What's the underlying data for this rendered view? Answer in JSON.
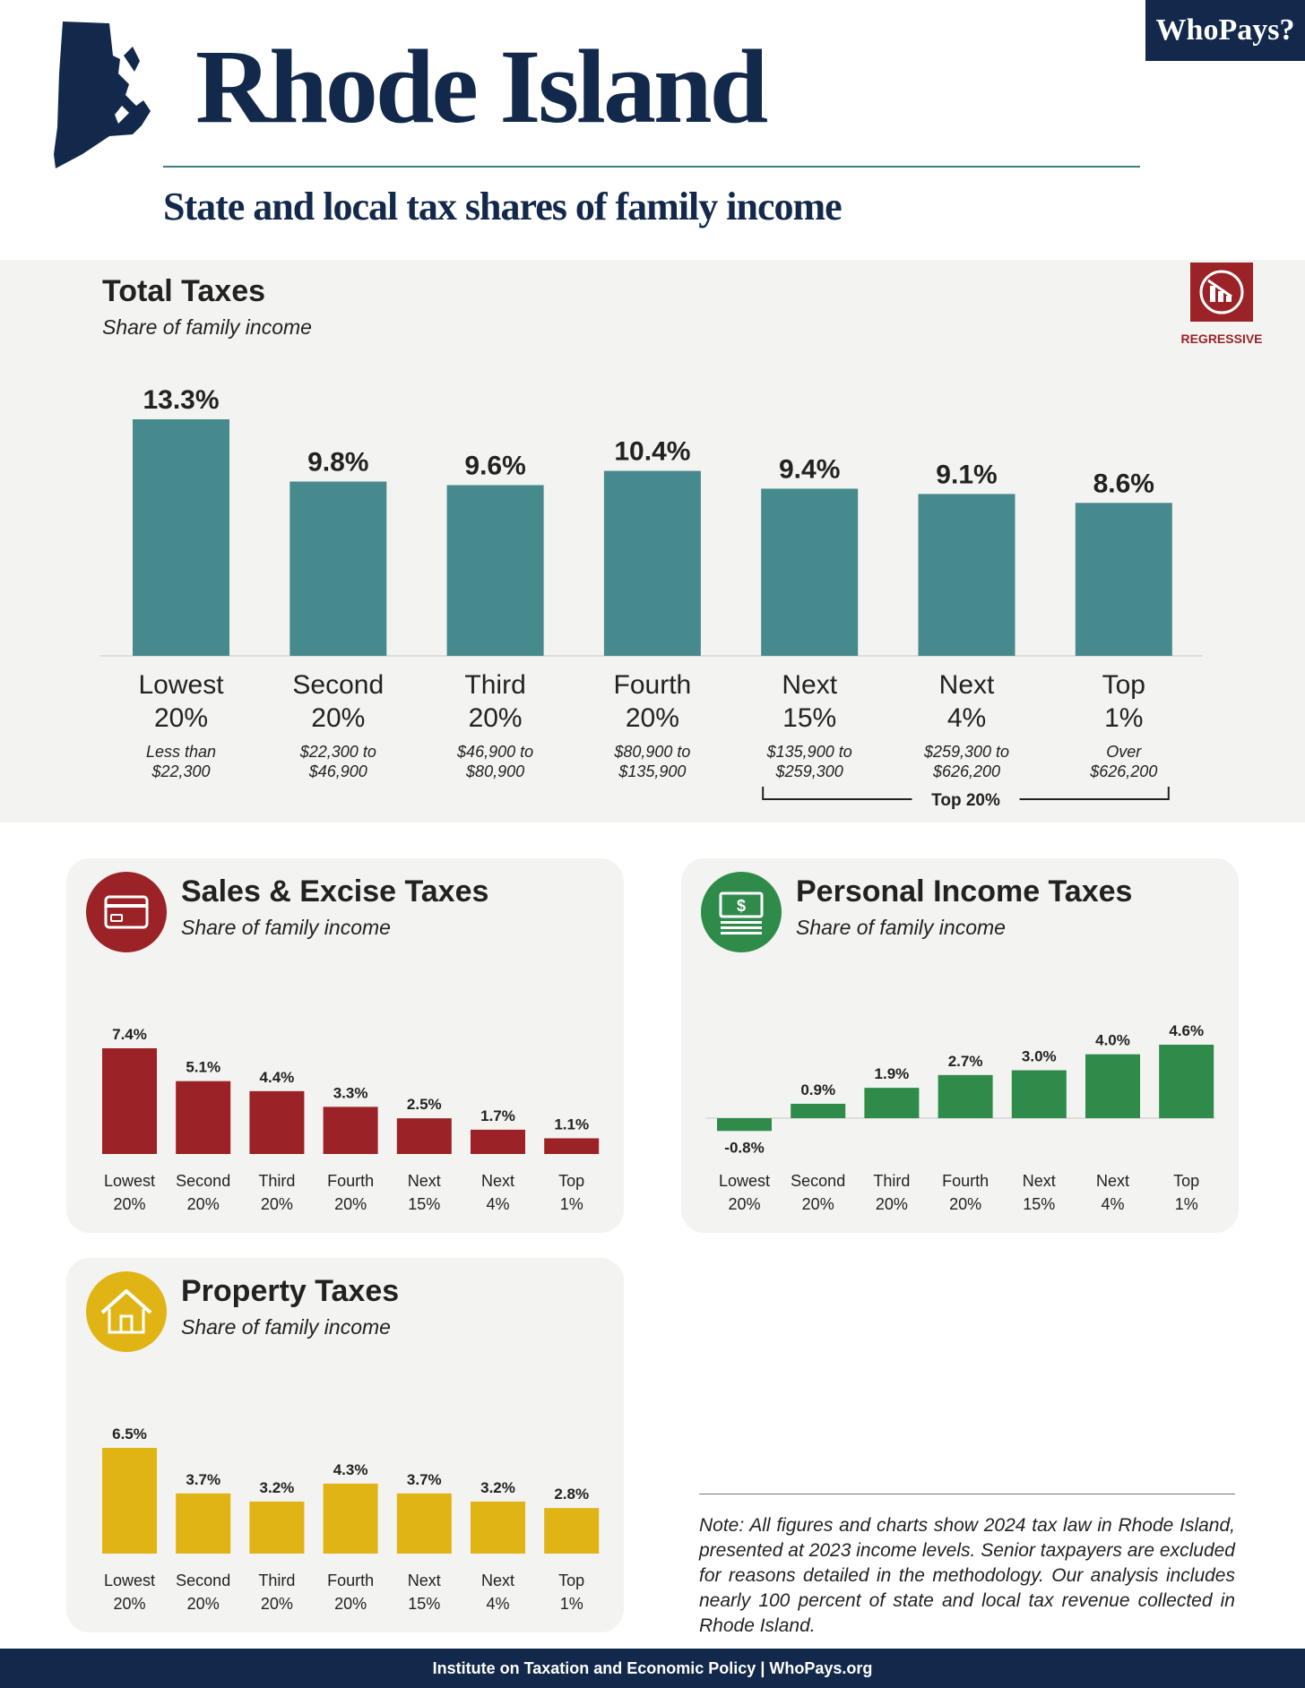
{
  "brand": "WhoPays?",
  "header": {
    "title": "Rhode Island",
    "subtitle": "State and local tax shares of family income"
  },
  "colors": {
    "navy": "#13294b",
    "teal": "#478a8d",
    "red": "#9b2226",
    "green": "#2e8b4a",
    "gold": "#e0b415",
    "panel_bg": "#f3f3f1"
  },
  "total_panel": {
    "title": "Total Taxes",
    "subtitle": "Share of family income",
    "badge_label": "REGRESSIVE",
    "badge_icon": "declining-bar-chart-icon",
    "top20_label": "Top 20%"
  },
  "sales_panel": {
    "title": "Sales & Excise Taxes",
    "subtitle": "Share of family income",
    "icon": "credit-card-icon"
  },
  "income_panel": {
    "title": "Personal Income Taxes",
    "subtitle": "Share of family income",
    "icon": "dollar-bills-icon"
  },
  "property_panel": {
    "title": "Property Taxes",
    "subtitle": "Share of family income",
    "icon": "house-icon"
  },
  "note": "Note: All figures and charts show 2024 tax law in Rhode Island, presented at 2023 income levels. Senior taxpayers are excluded for reasons detailed in the methodology. Our analysis includes nearly 100 percent of state and local tax revenue collected in Rhode Island.",
  "footer": "Institute on Taxation and Economic Policy | WhoPays.org",
  "chart_data": [
    {
      "type": "bar",
      "title": "Total Taxes",
      "subtitle": "Share of family income",
      "categories": [
        "Lowest 20%",
        "Second 20%",
        "Third 20%",
        "Fourth 20%",
        "Next 15%",
        "Next 4%",
        "Top 1%"
      ],
      "category_lines": [
        [
          "Lowest",
          "20%"
        ],
        [
          "Second",
          "20%"
        ],
        [
          "Third",
          "20%"
        ],
        [
          "Fourth",
          "20%"
        ],
        [
          "Next",
          "15%"
        ],
        [
          "Next",
          "4%"
        ],
        [
          "Top",
          "1%"
        ]
      ],
      "income_ranges": [
        [
          "Less than",
          "$22,300"
        ],
        [
          "$22,300 to",
          "$46,900"
        ],
        [
          "$46,900 to",
          "$80,900"
        ],
        [
          "$80,900 to",
          "$135,900"
        ],
        [
          "$135,900 to",
          "$259,300"
        ],
        [
          "$259,300 to",
          "$626,200"
        ],
        [
          "Over",
          "$626,200"
        ]
      ],
      "values": [
        13.3,
        9.8,
        9.6,
        10.4,
        9.4,
        9.1,
        8.6
      ],
      "labels": [
        "13.3%",
        "9.8%",
        "9.6%",
        "10.4%",
        "9.4%",
        "9.1%",
        "8.6%"
      ],
      "ylim": [
        0,
        13.3
      ],
      "color": "#478a8d"
    },
    {
      "type": "bar",
      "title": "Sales & Excise Taxes",
      "subtitle": "Share of family income",
      "categories": [
        "Lowest 20%",
        "Second 20%",
        "Third 20%",
        "Fourth 20%",
        "Next 15%",
        "Next 4%",
        "Top 1%"
      ],
      "category_lines": [
        [
          "Lowest",
          "20%"
        ],
        [
          "Second",
          "20%"
        ],
        [
          "Third",
          "20%"
        ],
        [
          "Fourth",
          "20%"
        ],
        [
          "Next",
          "15%"
        ],
        [
          "Next",
          "4%"
        ],
        [
          "Top",
          "1%"
        ]
      ],
      "values": [
        7.4,
        5.1,
        4.4,
        3.3,
        2.5,
        1.7,
        1.1
      ],
      "labels": [
        "7.4%",
        "5.1%",
        "4.4%",
        "3.3%",
        "2.5%",
        "1.7%",
        "1.1%"
      ],
      "ylim": [
        0,
        7.4
      ],
      "color": "#9b2226"
    },
    {
      "type": "bar",
      "title": "Personal Income Taxes",
      "subtitle": "Share of family income",
      "categories": [
        "Lowest 20%",
        "Second 20%",
        "Third 20%",
        "Fourth 20%",
        "Next 15%",
        "Next 4%",
        "Top 1%"
      ],
      "category_lines": [
        [
          "Lowest",
          "20%"
        ],
        [
          "Second",
          "20%"
        ],
        [
          "Third",
          "20%"
        ],
        [
          "Fourth",
          "20%"
        ],
        [
          "Next",
          "15%"
        ],
        [
          "Next",
          "4%"
        ],
        [
          "Top",
          "1%"
        ]
      ],
      "values": [
        -0.8,
        0.9,
        1.9,
        2.7,
        3.0,
        4.0,
        4.6
      ],
      "labels": [
        "-0.8%",
        "0.9%",
        "1.9%",
        "2.7%",
        "3.0%",
        "4.0%",
        "4.6%"
      ],
      "ylim": [
        -0.8,
        4.6
      ],
      "color": "#2e8b4a"
    },
    {
      "type": "bar",
      "title": "Property Taxes",
      "subtitle": "Share of family income",
      "categories": [
        "Lowest 20%",
        "Second 20%",
        "Third 20%",
        "Fourth 20%",
        "Next 15%",
        "Next 4%",
        "Top 1%"
      ],
      "category_lines": [
        [
          "Lowest",
          "20%"
        ],
        [
          "Second",
          "20%"
        ],
        [
          "Third",
          "20%"
        ],
        [
          "Fourth",
          "20%"
        ],
        [
          "Next",
          "15%"
        ],
        [
          "Next",
          "4%"
        ],
        [
          "Top",
          "1%"
        ]
      ],
      "values": [
        6.5,
        3.7,
        3.2,
        4.3,
        3.7,
        3.2,
        2.8
      ],
      "labels": [
        "6.5%",
        "3.7%",
        "3.2%",
        "4.3%",
        "3.7%",
        "3.2%",
        "2.8%"
      ],
      "ylim": [
        0,
        6.5
      ],
      "color": "#e0b415"
    }
  ]
}
